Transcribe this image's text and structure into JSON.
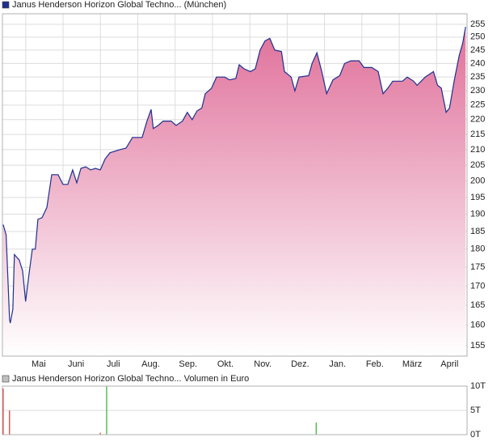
{
  "chart_data": [
    {
      "type": "area",
      "log_scale": true,
      "grid": true,
      "x": [
        0.05,
        0.13,
        0.22,
        0.24,
        0.31,
        0.35,
        0.48,
        0.57,
        0.65,
        0.74,
        0.83,
        0.91,
        0.98,
        1.09,
        1.22,
        1.35,
        1.52,
        1.65,
        1.78,
        1.91,
        2.02,
        2.13,
        2.26,
        2.39,
        2.52,
        2.65,
        2.78,
        2.91,
        3.17,
        3.34,
        3.51,
        3.77,
        3.9,
        4.01,
        4.07,
        4.2,
        4.33,
        4.55,
        4.68,
        4.85,
        4.98,
        5.11,
        5.24,
        5.37,
        5.46,
        5.63,
        5.76,
        5.98,
        6.11,
        6.28,
        6.37,
        6.5,
        6.67,
        6.8,
        6.93,
        7.06,
        7.19,
        7.32,
        7.5,
        7.58,
        7.76,
        7.86,
        7.97,
        8.23,
        8.32,
        8.45,
        8.58,
        8.71,
        8.88,
        9.06,
        9.19,
        9.36,
        9.58,
        9.71,
        9.92,
        10.09,
        10.22,
        10.35,
        10.48,
        10.74,
        10.87,
        11.04,
        11.13,
        11.35,
        11.57,
        11.68,
        11.78,
        11.91,
        12.0,
        12.13,
        12.26,
        12.35,
        12.43
      ],
      "series": [
        {
          "name": "Janus Henderson Horizon Global Techno... (München)",
          "color": "#1f2f8f",
          "fill": "#e0709a",
          "values": [
            187,
            184,
            161.5,
            160.5,
            164,
            178.5,
            177,
            174,
            166,
            173,
            180,
            180,
            188.5,
            189,
            192,
            202,
            202,
            199,
            199,
            203.5,
            199.5,
            204,
            204.5,
            203.5,
            204,
            203.5,
            207,
            209,
            210,
            210.5,
            214,
            214,
            219.5,
            223.5,
            217,
            218,
            219.5,
            219.5,
            218,
            219.5,
            222.5,
            220,
            223,
            224,
            229,
            231,
            235,
            235,
            234,
            234.5,
            239.5,
            238,
            237,
            238,
            245,
            248.5,
            249.5,
            245,
            244.5,
            237,
            235,
            230,
            235,
            235.5,
            240,
            244,
            237,
            229,
            234,
            235.5,
            240,
            241,
            241,
            238.5,
            238.5,
            237,
            229,
            231,
            233.5,
            233.5,
            235,
            233.5,
            232,
            235,
            237,
            232,
            231,
            222.5,
            224,
            234,
            243,
            247.5,
            254
          ]
        }
      ],
      "xlim": [
        0.03,
        12.47
      ],
      "xticks": [
        {
          "value": 1,
          "label": "Mai"
        },
        {
          "value": 2,
          "label": "Juni"
        },
        {
          "value": 3,
          "label": "Juli"
        },
        {
          "value": 4,
          "label": "Aug."
        },
        {
          "value": 5,
          "label": "Sep."
        },
        {
          "value": 6,
          "label": "Okt."
        },
        {
          "value": 7,
          "label": "Nov."
        },
        {
          "value": 8,
          "label": "Dez."
        },
        {
          "value": 9,
          "label": "Jan."
        },
        {
          "value": 10,
          "label": "Feb."
        },
        {
          "value": 11,
          "label": "März"
        },
        {
          "value": 12,
          "label": "April"
        }
      ],
      "ylim": [
        152.5,
        259.2
      ],
      "yticks": [
        155,
        160,
        165,
        170,
        175,
        180,
        185,
        190,
        195,
        200,
        205,
        210,
        215,
        220,
        225,
        230,
        235,
        240,
        245,
        250,
        255
      ]
    },
    {
      "type": "bar",
      "grid": true,
      "x": [
        0.05,
        0.22,
        2.65,
        2.82,
        8.43
      ],
      "series": [
        {
          "name": "Janus Henderson Horizon Global Techno... Volumen in Euro",
          "color": "#c0c0c0",
          "values": [
            9500,
            5000,
            400,
            10000,
            2500
          ],
          "bar_colors": [
            "#e03030",
            "#e03030",
            "#e03030",
            "#30b030",
            "#30b030"
          ]
        }
      ],
      "xlim": [
        0.03,
        12.47
      ],
      "ylim": [
        0,
        10000
      ],
      "yticks": [
        {
          "value": 0,
          "label": "0T"
        },
        {
          "value": 5000,
          "label": "5T"
        },
        {
          "value": 10000,
          "label": "10T"
        }
      ]
    }
  ]
}
